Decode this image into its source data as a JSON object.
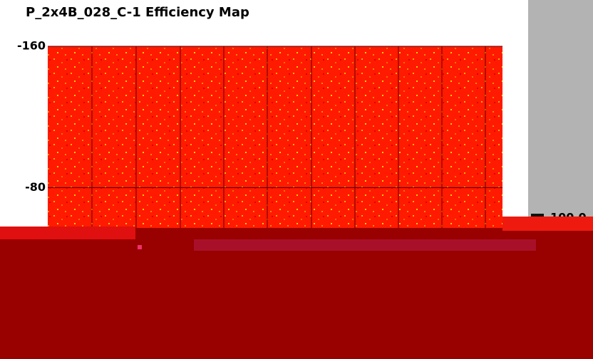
{
  "chart_data": {
    "type": "heatmap",
    "title": "P_2x4B_028_C-1 Efficiency Map",
    "ylim": [
      0,
      -160
    ],
    "yticks": [
      -160,
      -80
    ],
    "colorbar": {
      "ticks": [
        {
          "value": 100,
          "label": "100.0"
        }
      ]
    }
  }
}
